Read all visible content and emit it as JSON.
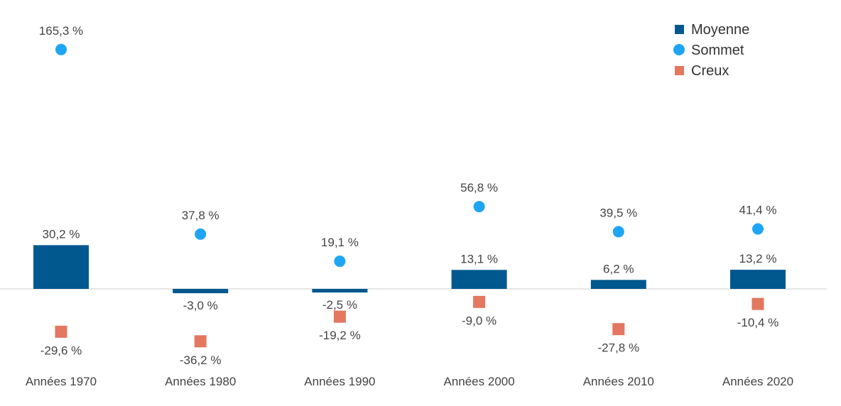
{
  "chart_data": {
    "type": "bar",
    "title": "",
    "xlabel": "",
    "ylabel": "",
    "categories": [
      "Années 1970",
      "Années 1980",
      "Années 1990",
      "Années 2000",
      "Années 2010",
      "Années 2020"
    ],
    "series": [
      {
        "name": "Moyenne",
        "mark": "bar",
        "color": "#00588f",
        "values": [
          30.2,
          -3.0,
          -2.5,
          13.1,
          6.2,
          13.2
        ],
        "labels": [
          "30,2 %",
          "-3,0 %",
          "-2,5 %",
          "13,1 %",
          "6,2 %",
          "13,2 %"
        ]
      },
      {
        "name": "Sommet",
        "mark": "circle",
        "color": "#1ea5f5",
        "values": [
          165.3,
          37.8,
          19.1,
          56.8,
          39.5,
          41.4
        ],
        "labels": [
          "165,3 %",
          "37,8 %",
          "19,1 %",
          "56,8 %",
          "39,5 %",
          "41,4 %"
        ]
      },
      {
        "name": "Creux",
        "mark": "square",
        "color": "#e3775f",
        "values": [
          -29.6,
          -36.2,
          -19.2,
          -9.0,
          -27.8,
          -10.4
        ],
        "labels": [
          "-29,6 %",
          "-36,2 %",
          "-19,2 %",
          "-9,0 %",
          "-27,8 %",
          "-10,4 %"
        ]
      }
    ],
    "ylim": [
      -40,
      170
    ],
    "grid": false,
    "zero_line": true,
    "legend_position": "top-right"
  }
}
